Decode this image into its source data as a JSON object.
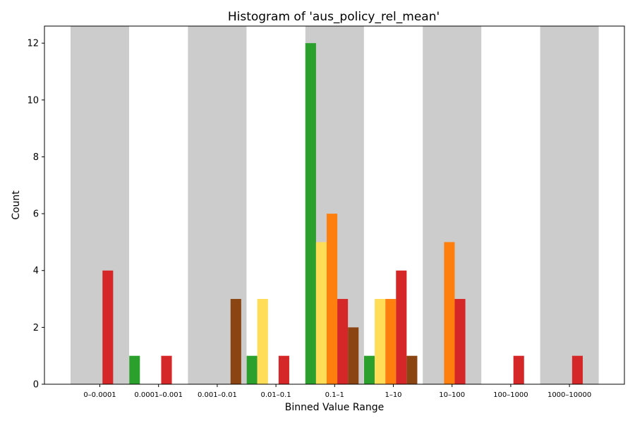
{
  "chart_data": {
    "type": "bar",
    "title": "Histogram of 'aus_policy_rel_mean'",
    "xlabel": "Binned Value Range",
    "ylabel": "Count",
    "ylim": [
      0,
      12.6
    ],
    "yticks": [
      0,
      2,
      4,
      6,
      8,
      10,
      12
    ],
    "grid": false,
    "legend": "none",
    "categories": [
      "0–0.0001",
      "0.0001–0.001",
      "0.001–0.01",
      "0.01–0.1",
      "0.1–1",
      "1–10",
      "10–100",
      "100–1000",
      "1000–10000"
    ],
    "band_color": "#cccccc",
    "series": [
      {
        "color": "#2ca02c",
        "values": [
          0,
          1,
          0,
          1,
          12,
          1,
          0,
          0,
          0
        ]
      },
      {
        "color": "#ffdd57",
        "values": [
          0,
          0,
          0,
          3,
          5,
          3,
          0,
          0,
          0
        ]
      },
      {
        "color": "#ff7f0e",
        "values": [
          0,
          0,
          0,
          0,
          6,
          3,
          5,
          0,
          0
        ]
      },
      {
        "color": "#d62728",
        "values": [
          4,
          1,
          0,
          1,
          3,
          4,
          3,
          1,
          1
        ]
      },
      {
        "color": "#8b4513",
        "values": [
          0,
          0,
          3,
          0,
          2,
          1,
          0,
          0,
          0
        ]
      }
    ]
  }
}
